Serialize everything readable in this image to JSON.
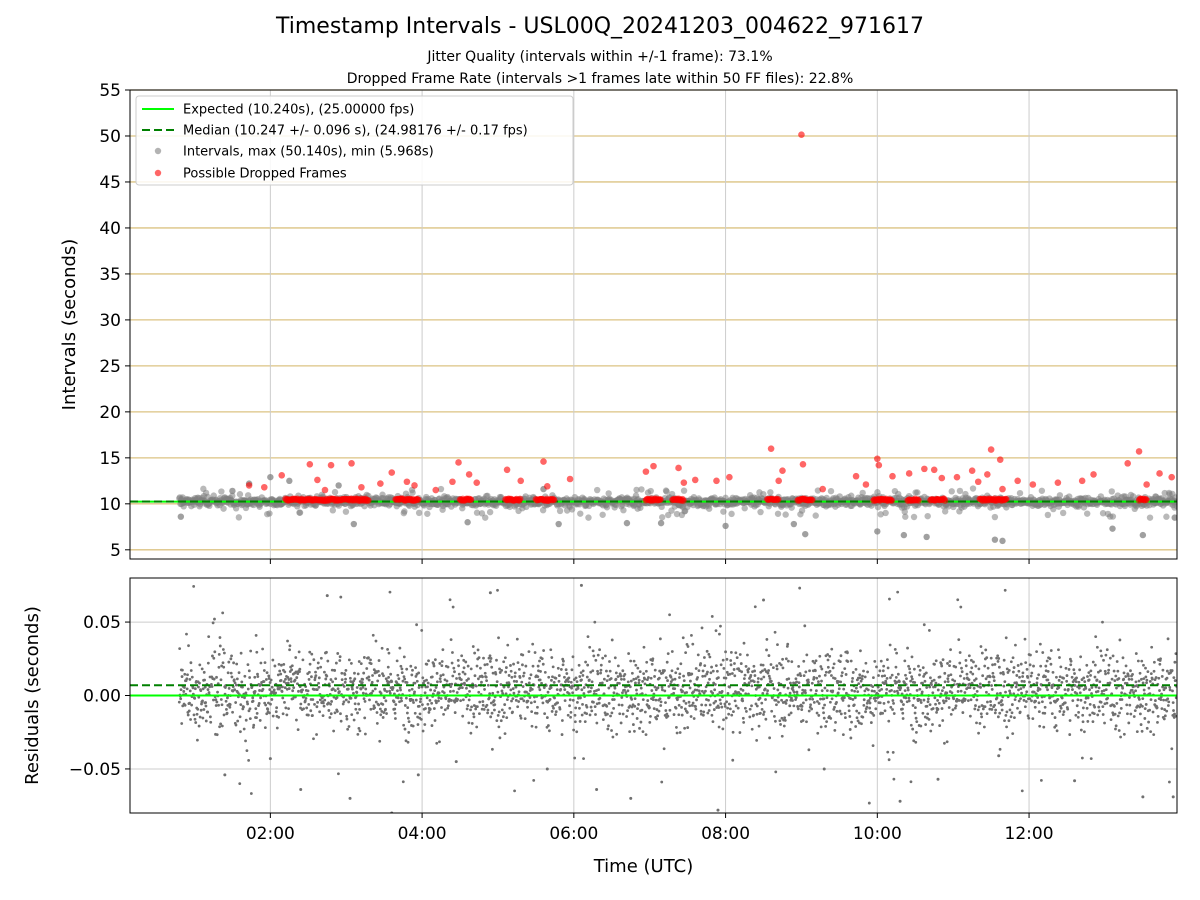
{
  "figure": {
    "title": "Timestamp Intervals - USL00Q_20241203_004622_971617",
    "subtitle_1": "Jitter Quality (intervals within +/-1 frame): 73.1%",
    "subtitle_2": "Dropped Frame Rate (intervals >1 frames late within 50 FF files): 22.8%"
  },
  "chart_data": [
    {
      "type": "scatter",
      "name": "intervals",
      "ylabel": "Intervals (seconds)",
      "xlim_hours": [
        0.15,
        13.95
      ],
      "ylim": [
        4,
        55
      ],
      "yticks": [
        5,
        10,
        15,
        20,
        25,
        30,
        35,
        40,
        45,
        50,
        55
      ],
      "grid": true,
      "legend_position": "top-left",
      "legend": [
        "Expected (10.240s), (25.00000 fps)",
        "Median (10.247 +/- 0.096 s), (24.98176 +/- 0.17 fps)",
        "Intervals, max (50.140s), min (5.968s)",
        "Possible Dropped Frames"
      ],
      "expected_interval": 10.24,
      "median_interval": 10.247,
      "max_interval": 50.14,
      "min_interval": 5.968,
      "colors": {
        "expected": "#00ff00",
        "median": "#008000",
        "intervals": "#808080",
        "dropped": "#ff0000",
        "hgrid": "#dcc383",
        "vgrid": "#cccccc"
      },
      "sample_points": [
        {
          "x": 0.82,
          "y": 8.6
        },
        {
          "x": 1.5,
          "y": 11.4
        },
        {
          "x": 1.72,
          "y": 12.2
        },
        {
          "x": 2.0,
          "y": 12.9
        },
        {
          "x": 2.25,
          "y": 12.5
        },
        {
          "x": 2.9,
          "y": 12.0
        },
        {
          "x": 3.1,
          "y": 7.8
        },
        {
          "x": 4.6,
          "y": 8.0
        },
        {
          "x": 5.6,
          "y": 11.6
        },
        {
          "x": 5.8,
          "y": 7.8
        },
        {
          "x": 6.7,
          "y": 7.9
        },
        {
          "x": 7.15,
          "y": 7.9
        },
        {
          "x": 8.0,
          "y": 7.6
        },
        {
          "x": 8.9,
          "y": 7.8
        },
        {
          "x": 9.05,
          "y": 6.7
        },
        {
          "x": 10.0,
          "y": 7.0
        },
        {
          "x": 10.35,
          "y": 6.6
        },
        {
          "x": 10.65,
          "y": 6.4
        },
        {
          "x": 11.55,
          "y": 6.1
        },
        {
          "x": 11.65,
          "y": 5.97
        },
        {
          "x": 13.1,
          "y": 7.3
        },
        {
          "x": 13.5,
          "y": 6.6
        },
        {
          "x": 13.92,
          "y": 8.5
        }
      ],
      "dropped_points": [
        {
          "x": 1.72,
          "y": 12.0
        },
        {
          "x": 1.92,
          "y": 11.8
        },
        {
          "x": 2.15,
          "y": 13.1
        },
        {
          "x": 2.52,
          "y": 14.3
        },
        {
          "x": 2.62,
          "y": 12.6
        },
        {
          "x": 2.72,
          "y": 11.5
        },
        {
          "x": 2.8,
          "y": 14.2
        },
        {
          "x": 3.07,
          "y": 14.4
        },
        {
          "x": 3.2,
          "y": 11.8
        },
        {
          "x": 3.45,
          "y": 12.2
        },
        {
          "x": 3.6,
          "y": 13.4
        },
        {
          "x": 3.8,
          "y": 12.4
        },
        {
          "x": 3.9,
          "y": 12.0
        },
        {
          "x": 4.18,
          "y": 11.5
        },
        {
          "x": 4.4,
          "y": 12.4
        },
        {
          "x": 4.48,
          "y": 14.5
        },
        {
          "x": 4.62,
          "y": 13.2
        },
        {
          "x": 4.72,
          "y": 12.3
        },
        {
          "x": 5.12,
          "y": 13.7
        },
        {
          "x": 5.3,
          "y": 12.5
        },
        {
          "x": 5.6,
          "y": 14.6
        },
        {
          "x": 5.65,
          "y": 11.9
        },
        {
          "x": 5.95,
          "y": 12.7
        },
        {
          "x": 6.95,
          "y": 13.5
        },
        {
          "x": 7.05,
          "y": 14.1
        },
        {
          "x": 7.38,
          "y": 13.9
        },
        {
          "x": 7.45,
          "y": 12.3
        },
        {
          "x": 7.6,
          "y": 12.6
        },
        {
          "x": 7.88,
          "y": 12.5
        },
        {
          "x": 8.05,
          "y": 12.9
        },
        {
          "x": 8.6,
          "y": 16.0
        },
        {
          "x": 8.7,
          "y": 12.5
        },
        {
          "x": 8.75,
          "y": 13.6
        },
        {
          "x": 9.02,
          "y": 14.3
        },
        {
          "x": 9.0,
          "y": 50.14
        },
        {
          "x": 9.28,
          "y": 11.6
        },
        {
          "x": 9.72,
          "y": 13.0
        },
        {
          "x": 9.85,
          "y": 12.1
        },
        {
          "x": 10.0,
          "y": 14.9
        },
        {
          "x": 10.02,
          "y": 14.2
        },
        {
          "x": 10.2,
          "y": 13.0
        },
        {
          "x": 10.42,
          "y": 13.3
        },
        {
          "x": 10.62,
          "y": 13.8
        },
        {
          "x": 10.75,
          "y": 13.7
        },
        {
          "x": 10.85,
          "y": 12.8
        },
        {
          "x": 11.05,
          "y": 12.9
        },
        {
          "x": 11.25,
          "y": 13.6
        },
        {
          "x": 11.33,
          "y": 12.4
        },
        {
          "x": 11.45,
          "y": 13.2
        },
        {
          "x": 11.5,
          "y": 15.9
        },
        {
          "x": 11.62,
          "y": 14.8
        },
        {
          "x": 11.65,
          "y": 11.6
        },
        {
          "x": 11.85,
          "y": 12.5
        },
        {
          "x": 12.05,
          "y": 12.1
        },
        {
          "x": 12.38,
          "y": 12.3
        },
        {
          "x": 12.7,
          "y": 12.5
        },
        {
          "x": 12.85,
          "y": 13.2
        },
        {
          "x": 13.3,
          "y": 14.4
        },
        {
          "x": 13.45,
          "y": 15.7
        },
        {
          "x": 13.55,
          "y": 12.1
        },
        {
          "x": 13.72,
          "y": 13.3
        },
        {
          "x": 13.88,
          "y": 12.9
        }
      ]
    },
    {
      "type": "scatter",
      "name": "residuals",
      "xlabel": "Time (UTC)",
      "ylabel": "Residuals (seconds)",
      "xlim_hours": [
        0.15,
        13.95
      ],
      "ylim": [
        -0.08,
        0.08
      ],
      "yticks": [
        -0.05,
        0.0,
        0.05
      ],
      "yticklabels": [
        "−0.05",
        "0.00",
        "0.05"
      ],
      "xticks_hours": [
        2,
        4,
        6,
        8,
        10,
        12
      ],
      "xticklabels": [
        "02:00",
        "04:00",
        "06:00",
        "08:00",
        "10:00",
        "12:00"
      ],
      "grid": true,
      "expected_residual": 0.0,
      "median_residual": 0.007,
      "colors": {
        "points": "#707070",
        "expected": "#00ff00",
        "median": "#008000",
        "grid": "#cccccc"
      },
      "sample_points": [
        {
          "x": 1.4,
          "y": -0.054
        },
        {
          "x": 2.0,
          "y": -0.043
        },
        {
          "x": 2.4,
          "y": -0.064
        },
        {
          "x": 2.75,
          "y": 0.068
        },
        {
          "x": 3.05,
          "y": -0.07
        },
        {
          "x": 3.6,
          "y": -0.08
        },
        {
          "x": 3.95,
          "y": -0.054
        },
        {
          "x": 4.45,
          "y": -0.045
        },
        {
          "x": 4.9,
          "y": 0.07
        },
        {
          "x": 5.65,
          "y": -0.05
        },
        {
          "x": 6.1,
          "y": 0.075
        },
        {
          "x": 6.3,
          "y": -0.064
        },
        {
          "x": 6.75,
          "y": -0.07
        },
        {
          "x": 7.9,
          "y": -0.078
        },
        {
          "x": 8.5,
          "y": 0.065
        },
        {
          "x": 9.3,
          "y": -0.05
        },
        {
          "x": 10.3,
          "y": -0.072
        },
        {
          "x": 10.8,
          "y": -0.057
        },
        {
          "x": 11.6,
          "y": -0.041
        },
        {
          "x": 12.6,
          "y": -0.058
        },
        {
          "x": 13.5,
          "y": -0.069
        },
        {
          "x": 13.9,
          "y": -0.069
        }
      ]
    }
  ]
}
